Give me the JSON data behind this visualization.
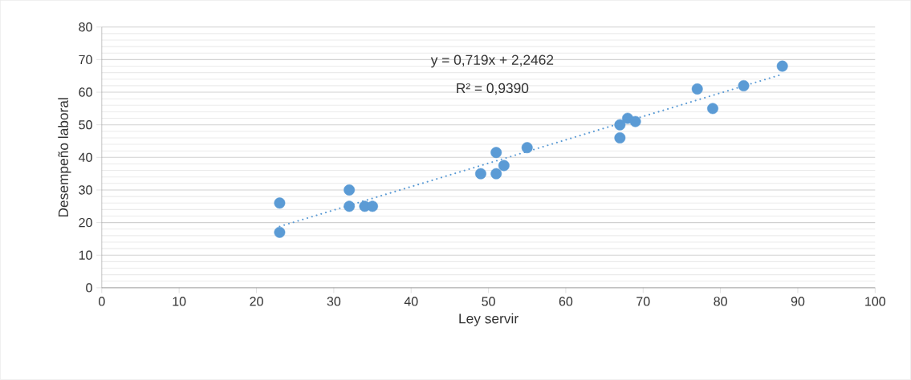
{
  "chart_data": {
    "type": "scatter",
    "xlabel": "Ley servir",
    "ylabel": "Desempeño laboral",
    "xlim": [
      0,
      100
    ],
    "xticks": [
      0,
      10,
      20,
      30,
      40,
      50,
      60,
      70,
      80,
      90,
      100
    ],
    "ylim": [
      0,
      80
    ],
    "yticks": [
      0,
      10,
      20,
      30,
      40,
      50,
      60,
      70,
      80
    ],
    "grid": "y",
    "marker": "circle",
    "series": [
      {
        "color": "#5b9bd5",
        "x": [
          23,
          23,
          32,
          32,
          34,
          35,
          49,
          51,
          51,
          52,
          55,
          67,
          67,
          68,
          69,
          77,
          79,
          83,
          88
        ],
        "values": [
          26,
          17,
          30,
          25,
          25,
          25,
          35,
          35,
          41.5,
          37.5,
          43,
          46,
          50,
          52,
          51,
          61,
          55,
          62,
          68
        ]
      },
      {
        "type": "line",
        "color": "#5b9bd5",
        "line_style": "dotted",
        "marker": "none",
        "x": [
          23,
          88
        ],
        "values": [
          18.8,
          65.5
        ]
      }
    ],
    "annotations": [
      "y = 0,719x + 2,2462",
      "R² = 0,9390"
    ]
  }
}
